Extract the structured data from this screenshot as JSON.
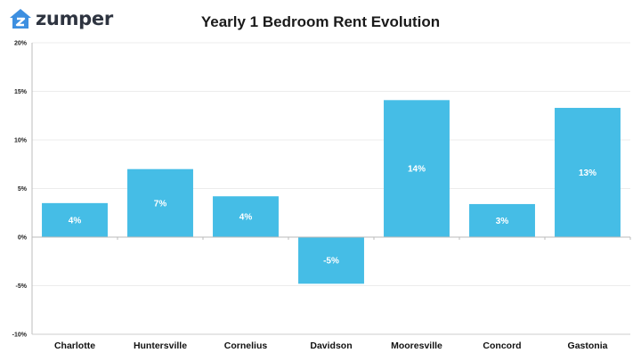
{
  "brand": {
    "name": "zumper",
    "logo_icon": "house-icon",
    "logo_color": "#3d8fe0"
  },
  "chart_data": {
    "type": "bar",
    "title": "Yearly 1 Bedroom Rent Evolution",
    "xlabel": "",
    "ylabel": "",
    "categories": [
      "Charlotte",
      "Huntersville",
      "Cornelius",
      "Davidson",
      "Mooresville",
      "Concord",
      "Gastonia"
    ],
    "values": [
      3.5,
      7.0,
      4.2,
      -4.8,
      14.1,
      3.4,
      13.3
    ],
    "data_labels": [
      "4%",
      "7%",
      "4%",
      "-5%",
      "14%",
      "3%",
      "13%"
    ],
    "ylim": [
      -10,
      20
    ],
    "yticks": [
      -10,
      -5,
      0,
      5,
      10,
      15,
      20
    ],
    "ytick_labels": [
      "-10%",
      "-5%",
      "0%",
      "5%",
      "10%",
      "15%",
      "20%"
    ],
    "grid": true,
    "legend": "none",
    "bar_color": "#45bde6"
  }
}
